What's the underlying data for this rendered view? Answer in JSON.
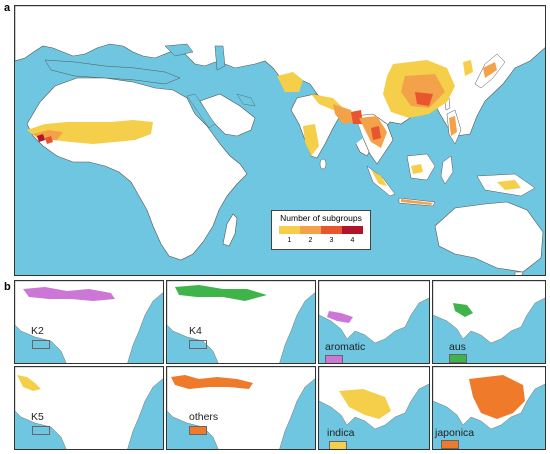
{
  "panel_a": {
    "label": "a",
    "legend": {
      "title": "Number of subgroups",
      "items": [
        {
          "label": "1",
          "color": "#f5cf4a"
        },
        {
          "label": "2",
          "color": "#f3a24a"
        },
        {
          "label": "3",
          "color": "#e8552f"
        },
        {
          "label": "4",
          "color": "#b0142a"
        }
      ]
    }
  },
  "panel_b": {
    "label": "b",
    "africa_maps": [
      {
        "name": "K2",
        "color": "#cc77d6"
      },
      {
        "name": "K4",
        "color": "#3fb44a"
      },
      {
        "name": "K5",
        "color": "#f5cf4a"
      },
      {
        "name": "others",
        "color": "#ee7a2a"
      }
    ],
    "asia_maps": [
      {
        "name": "aromatic",
        "color": "#cc77d6"
      },
      {
        "name": "aus",
        "color": "#3fb44a"
      },
      {
        "name": "indica",
        "color": "#f5cf4a"
      },
      {
        "name": "japonica",
        "color": "#ee7a2a"
      }
    ]
  },
  "colors": {
    "ocean": "#6ec6e0",
    "land": "#ffffff",
    "border": "#555555"
  }
}
